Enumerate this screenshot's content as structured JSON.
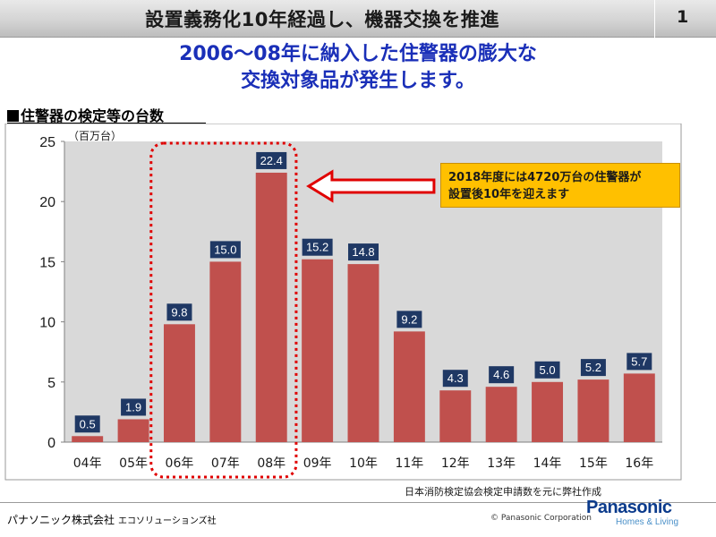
{
  "header": {
    "title": "設置義務化10年経過し、機器交換を推進",
    "page_number": "1"
  },
  "subtitle": {
    "line1": "2006～08年に納入した住警器の膨大な",
    "line2": "交換対象品が発生します。"
  },
  "chart_label": "住警器の検定等の台数",
  "callout": {
    "line1": "2018年度には4720万台の住警器が",
    "line2": "設置後10年を迎えます"
  },
  "source_note": "日本消防検定協会検定申請数を元に弊社作成",
  "footer": {
    "company": "パナソニック株式会社",
    "division": "エコソリューションズ社",
    "copyright": "© Panasonic Corporation",
    "brand": "Panasonic",
    "tagline": "Homes & Living"
  },
  "colors": {
    "bar": "#c0504d",
    "label_box": "#1f3864",
    "plot_bg": "#d9d9d9",
    "highlight": "#e00000",
    "subtitle": "#1a2fb8"
  },
  "chart_data": {
    "type": "bar",
    "categories": [
      "04年",
      "05年",
      "06年",
      "07年",
      "08年",
      "09年",
      "10年",
      "11年",
      "12年",
      "13年",
      "14年",
      "15年",
      "16年"
    ],
    "values": [
      0.5,
      1.9,
      9.8,
      15.0,
      22.4,
      15.2,
      14.8,
      9.2,
      4.3,
      4.6,
      5.0,
      5.2,
      5.7
    ],
    "value_labels": [
      "0.5",
      "1.9",
      "9.8",
      "15.0",
      "22.4",
      "15.2",
      "14.8",
      "9.2",
      "4.3",
      "4.6",
      "5.0",
      "5.2",
      "5.7"
    ],
    "unit_label": "（百万台）",
    "yticks": [
      "0",
      "5",
      "10",
      "15",
      "20",
      "25"
    ],
    "ylim": [
      0,
      25
    ],
    "grid": false,
    "legend": "none",
    "highlighted_categories": [
      "06年",
      "07年",
      "08年"
    ]
  }
}
